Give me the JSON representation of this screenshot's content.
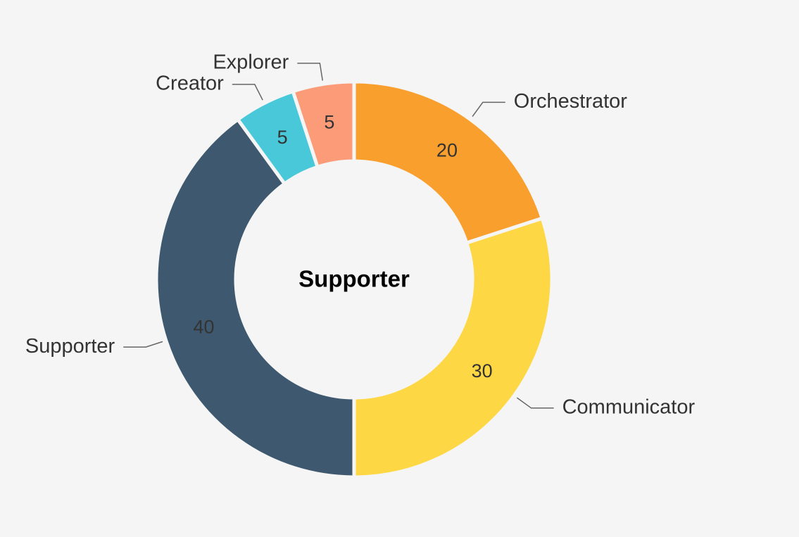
{
  "chart_data": {
    "type": "donut",
    "center_label": "Supporter",
    "categories": [
      "Orchestrator",
      "Communicator",
      "Supporter",
      "Creator",
      "Explorer"
    ],
    "values": [
      20,
      30,
      40,
      5,
      5
    ],
    "colors": [
      "#f99f2d",
      "#fdd744",
      "#3e596f",
      "#48c8d8",
      "#fc9b78"
    ]
  }
}
